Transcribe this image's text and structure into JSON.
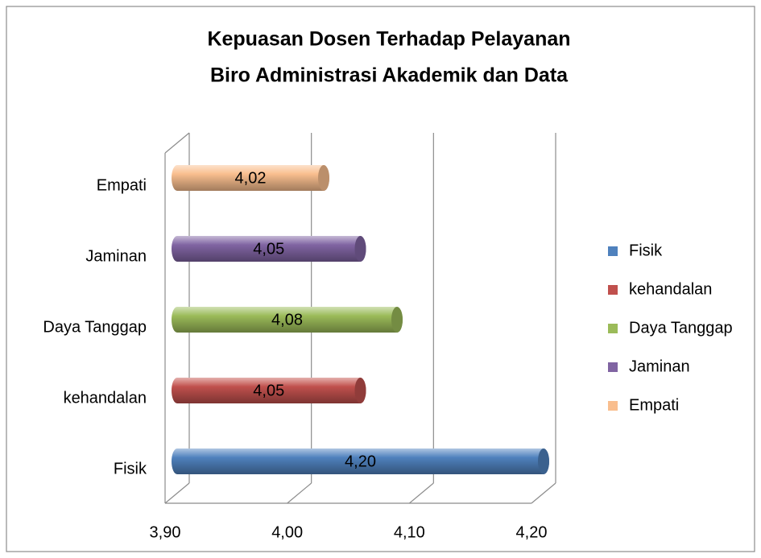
{
  "chart_data": {
    "type": "bar",
    "title": [
      "Kepuasan Dosen Terhadap Pelayanan",
      "Biro Administrasi Akademik dan Data"
    ],
    "categories": [
      "Fisik",
      "kehandalan",
      "Daya Tanggap",
      "Jaminan",
      "Empati"
    ],
    "values": [
      4.2,
      4.05,
      4.08,
      4.05,
      4.02
    ],
    "value_labels": [
      "4,20",
      "4,05",
      "4,08",
      "4,05",
      "4,02"
    ],
    "colors": [
      "#4f81bd",
      "#c0504d",
      "#9bbb59",
      "#8064a2",
      "#f9be8e"
    ],
    "xlim": [
      3.9,
      4.2
    ],
    "xticks": [
      {
        "value": 3.9,
        "label": "3,90"
      },
      {
        "value": 4.0,
        "label": "4,00"
      },
      {
        "value": 4.1,
        "label": "4,10"
      },
      {
        "value": 4.2,
        "label": "4,20"
      }
    ],
    "grid": true,
    "legend": "right"
  }
}
